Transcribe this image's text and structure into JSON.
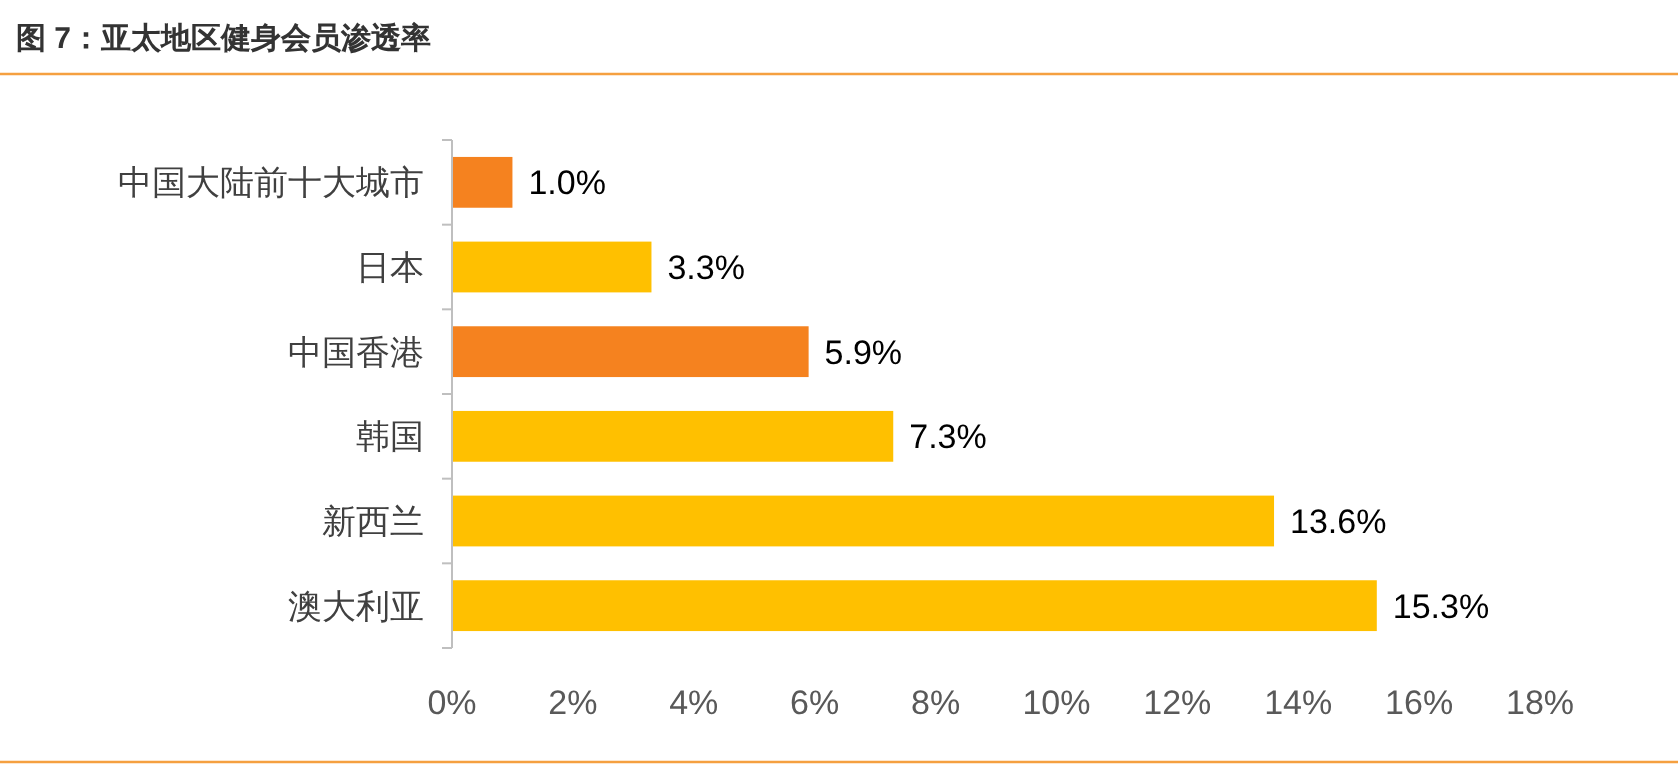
{
  "chart_data": {
    "type": "bar",
    "orientation": "horizontal",
    "title": "图 7：亚太地区健身会员渗透率",
    "categories": [
      "中国大陆前十大城市",
      "日本",
      "中国香港",
      "韩国",
      "新西兰",
      "澳大利亚"
    ],
    "values": [
      1.0,
      3.3,
      5.9,
      7.3,
      13.6,
      15.3
    ],
    "colors": [
      "#f5821f",
      "#ffc000",
      "#f5821f",
      "#ffc000",
      "#ffc000",
      "#ffc000"
    ],
    "value_labels": [
      "1.0%",
      "3.3%",
      "5.9%",
      "7.3%",
      "13.6%",
      "15.3%"
    ],
    "xlim": [
      0,
      18
    ],
    "xticks": [
      {
        "value": 0,
        "label": "0%"
      },
      {
        "value": 2,
        "label": "2%"
      },
      {
        "value": 4,
        "label": "4%"
      },
      {
        "value": 6,
        "label": "6%"
      },
      {
        "value": 8,
        "label": "8%"
      },
      {
        "value": 10,
        "label": "10%"
      },
      {
        "value": 12,
        "label": "12%"
      },
      {
        "value": 14,
        "label": "14%"
      },
      {
        "value": 16,
        "label": "16%"
      },
      {
        "value": 18,
        "label": "18%"
      }
    ]
  }
}
